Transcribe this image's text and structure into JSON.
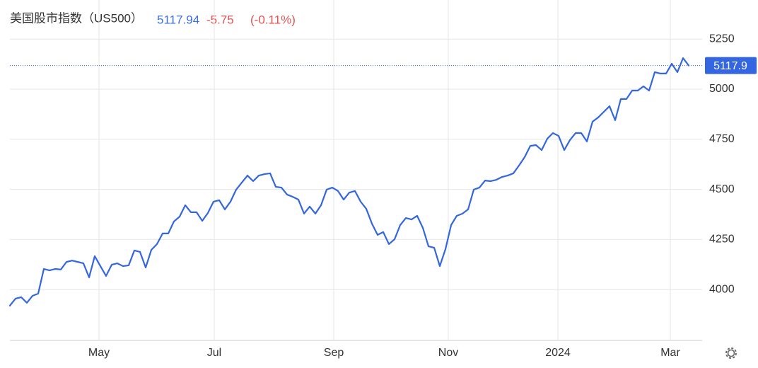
{
  "chart_data": {
    "type": "line",
    "title": "美国股市指数（US500）",
    "price": "5117.94",
    "change": "-5.75",
    "change_pct": "(-0.11%)",
    "price_line": {
      "value": 5117.94,
      "label": "5117.9"
    },
    "color": "#3366e0",
    "grid": true,
    "ylim": [
      3750,
      5375
    ],
    "yticks": [
      4000,
      4250,
      4500,
      4750,
      5000,
      5250
    ],
    "xlim": [
      0,
      122.375
    ],
    "xticks": [
      {
        "value": 15.75,
        "label": "May"
      },
      {
        "value": 36.125,
        "label": "Jul"
      },
      {
        "value": 57.25,
        "label": "Sep"
      },
      {
        "value": 77.5,
        "label": "Nov"
      },
      {
        "value": 96.875,
        "label": "2024"
      },
      {
        "value": 116.75,
        "label": "Mar"
      }
    ],
    "values": [
      3920,
      3955,
      3962,
      3934,
      3969,
      3980,
      4103,
      4096,
      4103,
      4100,
      4138,
      4145,
      4138,
      4131,
      4061,
      4167,
      4117,
      4068,
      4124,
      4131,
      4117,
      4121,
      4195,
      4188,
      4110,
      4198,
      4227,
      4280,
      4280,
      4340,
      4364,
      4421,
      4386,
      4386,
      4343,
      4382,
      4439,
      4446,
      4400,
      4439,
      4499,
      4534,
      4569,
      4541,
      4569,
      4576,
      4580,
      4513,
      4509,
      4474,
      4463,
      4449,
      4379,
      4414,
      4379,
      4421,
      4499,
      4509,
      4492,
      4449,
      4484,
      4492,
      4439,
      4403,
      4329,
      4273,
      4287,
      4227,
      4251,
      4322,
      4357,
      4350,
      4368,
      4308,
      4216,
      4209,
      4117,
      4202,
      4322,
      4368,
      4379,
      4400,
      4499,
      4509,
      4544,
      4541,
      4548,
      4562,
      4569,
      4580,
      4619,
      4661,
      4717,
      4721,
      4696,
      4753,
      4781,
      4767,
      4696,
      4746,
      4781,
      4781,
      4739,
      4838,
      4859,
      4887,
      4915,
      4845,
      4951,
      4951,
      4993,
      4993,
      5014,
      4993,
      5085,
      5078,
      5078,
      5127,
      5085,
      5155,
      5117.94
    ]
  }
}
